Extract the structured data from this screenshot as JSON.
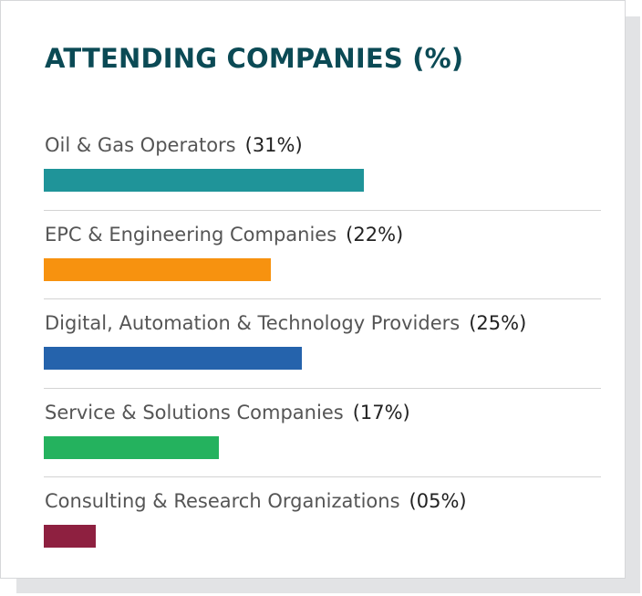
{
  "chart_data": {
    "type": "bar",
    "title": "ATTENDING COMPANIES (%)",
    "categories": [
      "Oil & Gas Operators",
      "EPC & Engineering Companies",
      "Digital, Automation & Technology Providers",
      "Service & Solutions Companies",
      "Consulting & Research Organizations"
    ],
    "value_labels": [
      "(31%)",
      "(22%)",
      "(25%)",
      "(17%)",
      "(05%)"
    ],
    "values": [
      31,
      22,
      25,
      17,
      5
    ],
    "colors": [
      "#1f9499",
      "#f7920f",
      "#2563ac",
      "#24b25e",
      "#8e2040"
    ],
    "xlim": [
      0,
      54
    ],
    "orientation": "horizontal",
    "grid": false,
    "legend": "none"
  }
}
